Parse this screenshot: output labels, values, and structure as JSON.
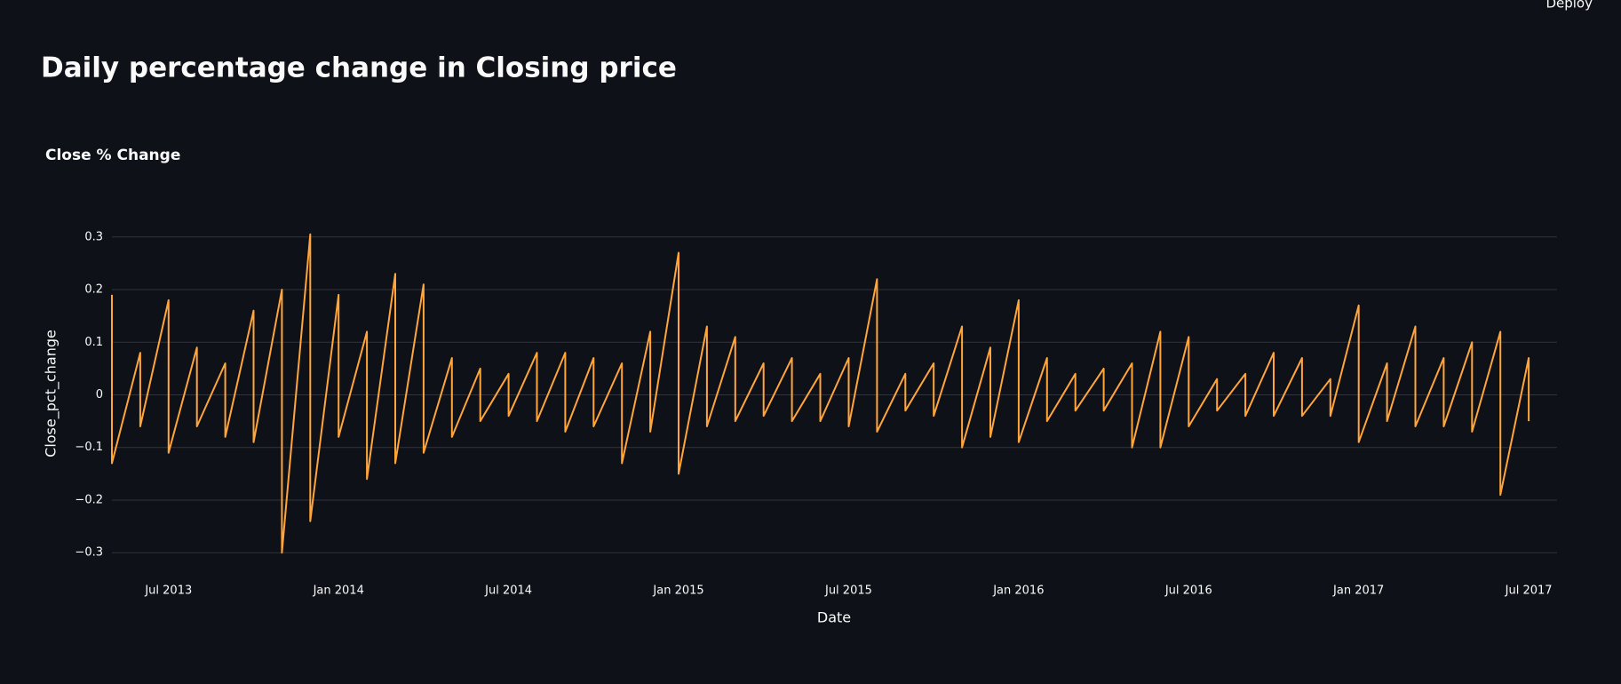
{
  "page": {
    "deploy": "Deploy",
    "title": "Daily percentage change in Closing price"
  },
  "chart_data": {
    "type": "line",
    "title": "Close % Change",
    "x_label": "Date",
    "y_label": "Close_pct_change",
    "color": "#ffa53a",
    "grid": true,
    "x": [
      "2013-05",
      "2013-05",
      "2013-06",
      "2013-06",
      "2013-07",
      "2013-07",
      "2013-08",
      "2013-08",
      "2013-09",
      "2013-09",
      "2013-10",
      "2013-10",
      "2013-11",
      "2013-11",
      "2013-12",
      "2013-12",
      "2014-01",
      "2014-01",
      "2014-02",
      "2014-02",
      "2014-03",
      "2014-03",
      "2014-04",
      "2014-04",
      "2014-05",
      "2014-05",
      "2014-06",
      "2014-06",
      "2014-07",
      "2014-07",
      "2014-08",
      "2014-08",
      "2014-09",
      "2014-09",
      "2014-10",
      "2014-10",
      "2014-11",
      "2014-11",
      "2014-12",
      "2014-12",
      "2015-01",
      "2015-01",
      "2015-02",
      "2015-02",
      "2015-03",
      "2015-03",
      "2015-04",
      "2015-04",
      "2015-05",
      "2015-05",
      "2015-06",
      "2015-06",
      "2015-07",
      "2015-07",
      "2015-08",
      "2015-08",
      "2015-09",
      "2015-09",
      "2015-10",
      "2015-10",
      "2015-11",
      "2015-11",
      "2015-12",
      "2015-12",
      "2016-01",
      "2016-01",
      "2016-02",
      "2016-02",
      "2016-03",
      "2016-03",
      "2016-04",
      "2016-04",
      "2016-05",
      "2016-05",
      "2016-06",
      "2016-06",
      "2016-07",
      "2016-07",
      "2016-08",
      "2016-08",
      "2016-09",
      "2016-09",
      "2016-10",
      "2016-10",
      "2016-11",
      "2016-11",
      "2016-12",
      "2016-12",
      "2017-01",
      "2017-01",
      "2017-02",
      "2017-02",
      "2017-03",
      "2017-03",
      "2017-04",
      "2017-04",
      "2017-05",
      "2017-05",
      "2017-06",
      "2017-06",
      "2017-07",
      "2017-07"
    ],
    "values": [
      0.19,
      -0.13,
      0.08,
      -0.06,
      0.18,
      -0.11,
      0.09,
      -0.06,
      0.06,
      -0.08,
      0.16,
      -0.09,
      0.2,
      -0.3,
      0.305,
      -0.24,
      0.19,
      -0.08,
      0.12,
      -0.16,
      0.23,
      -0.13,
      0.21,
      -0.11,
      0.07,
      -0.08,
      0.05,
      -0.05,
      0.04,
      -0.04,
      0.08,
      -0.05,
      0.08,
      -0.07,
      0.07,
      -0.06,
      0.06,
      -0.13,
      0.12,
      -0.07,
      0.27,
      -0.15,
      0.13,
      -0.06,
      0.11,
      -0.05,
      0.06,
      -0.04,
      0.07,
      -0.05,
      0.04,
      -0.05,
      0.07,
      -0.06,
      0.22,
      -0.07,
      0.04,
      -0.03,
      0.06,
      -0.04,
      0.13,
      -0.1,
      0.09,
      -0.08,
      0.18,
      -0.09,
      0.07,
      -0.05,
      0.04,
      -0.03,
      0.05,
      -0.03,
      0.06,
      -0.1,
      0.12,
      -0.1,
      0.11,
      -0.06,
      0.03,
      -0.03,
      0.04,
      -0.04,
      0.08,
      -0.04,
      0.07,
      -0.04,
      0.03,
      -0.04,
      0.17,
      -0.09,
      0.06,
      -0.05,
      0.13,
      -0.06,
      0.07,
      -0.06,
      0.1,
      -0.07,
      0.12,
      -0.19,
      0.07,
      -0.05
    ],
    "xlim": [
      "2013-05",
      "2017-08"
    ],
    "xticks": [
      {
        "value": "2013-07",
        "label": "Jul 2013"
      },
      {
        "value": "2014-01",
        "label": "Jan 2014"
      },
      {
        "value": "2014-07",
        "label": "Jul 2014"
      },
      {
        "value": "2015-01",
        "label": "Jan 2015"
      },
      {
        "value": "2015-07",
        "label": "Jul 2015"
      },
      {
        "value": "2016-01",
        "label": "Jan 2016"
      },
      {
        "value": "2016-07",
        "label": "Jul 2016"
      },
      {
        "value": "2017-01",
        "label": "Jan 2017"
      },
      {
        "value": "2017-07",
        "label": "Jul 2017"
      }
    ],
    "ylim": [
      -0.33,
      0.33
    ],
    "yticks": [
      {
        "value": -0.3,
        "label": "−0.3"
      },
      {
        "value": -0.2,
        "label": "−0.2"
      },
      {
        "value": -0.1,
        "label": "−0.1"
      },
      0,
      0.1,
      0.2,
      0.3
    ]
  }
}
